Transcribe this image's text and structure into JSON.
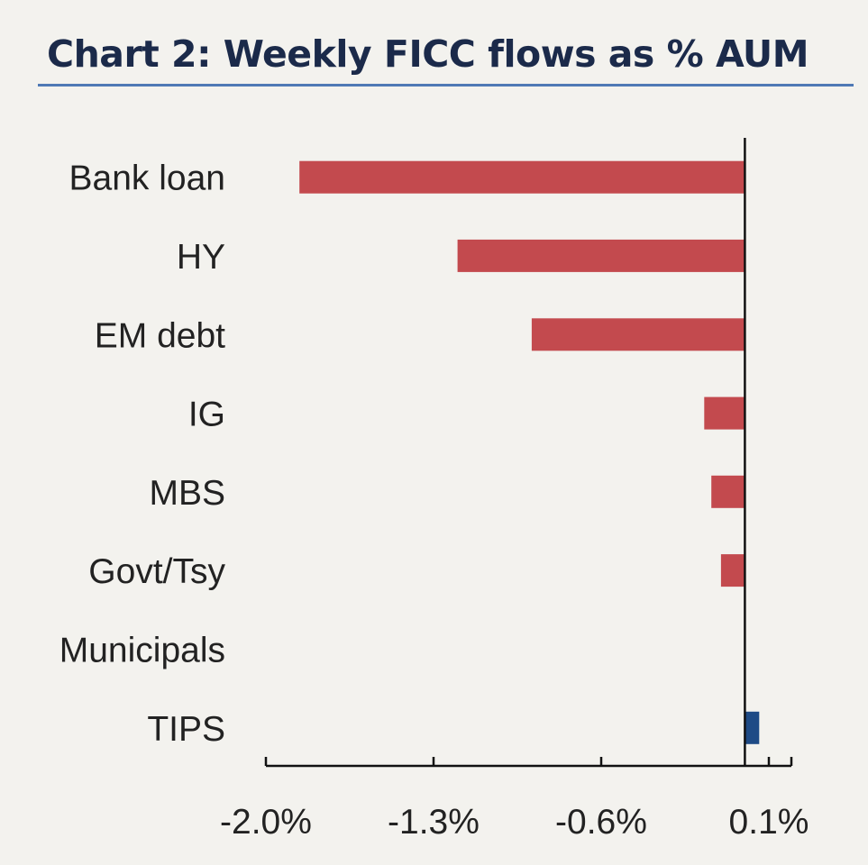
{
  "chart_data": {
    "type": "bar",
    "orientation": "horizontal",
    "title": "Chart 2: Weekly FICC flows as % AUM",
    "categories": [
      "Bank loan",
      "HY",
      "EM debt",
      "IG",
      "MBS",
      "Govt/Tsy",
      "Municipals",
      "TIPS"
    ],
    "values": [
      -1.86,
      -1.2,
      -0.89,
      -0.17,
      -0.14,
      -0.1,
      0.0,
      0.06
    ],
    "xlim": [
      -2.0,
      0.2
    ],
    "xticks": [
      -2.0,
      -1.3,
      -0.6,
      0.1
    ],
    "xtick_labels": [
      "-2.0%",
      "-1.3%",
      "-0.6%",
      "0.1%"
    ],
    "xlabel": "",
    "ylabel": "",
    "grid": false,
    "colors": {
      "negative": "#c34a4e",
      "positive": "#1e4b86",
      "axis": "#111111",
      "title_rule": "#4f79b5"
    }
  }
}
